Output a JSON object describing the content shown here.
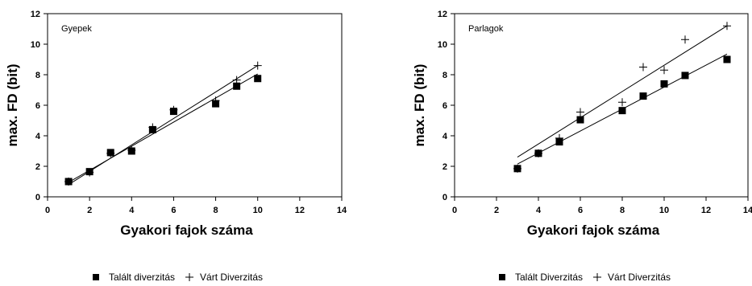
{
  "chart_data": [
    {
      "type": "scatter",
      "title": "Gyepek",
      "xlabel": "Gyakori fajok száma",
      "ylabel": "max. FD (bit)",
      "xlim": [
        0,
        14
      ],
      "ylim": [
        0,
        12
      ],
      "xticks": [
        0,
        2,
        4,
        6,
        8,
        10,
        12,
        14
      ],
      "yticks": [
        0,
        2,
        4,
        6,
        8,
        10,
        12
      ],
      "grid": false,
      "legend_position": "bottom",
      "series": [
        {
          "name": "Talált diverzitás",
          "marker": "square",
          "color": "#000000",
          "points": [
            [
              1,
              1.0
            ],
            [
              2,
              1.65
            ],
            [
              3,
              2.9
            ],
            [
              4,
              3.0
            ],
            [
              5,
              4.4
            ],
            [
              6,
              5.6
            ],
            [
              8,
              6.1
            ],
            [
              9,
              7.25
            ],
            [
              10,
              7.75
            ]
          ],
          "trendline": [
            [
              1,
              0.95
            ],
            [
              10,
              8.05
            ]
          ]
        },
        {
          "name": "Várt Diverzitás",
          "marker": "plus",
          "color": "#000000",
          "points": [
            [
              1,
              1.0
            ],
            [
              2,
              1.6
            ],
            [
              3,
              2.85
            ],
            [
              4,
              3.05
            ],
            [
              5,
              4.55
            ],
            [
              6,
              5.7
            ],
            [
              8,
              6.3
            ],
            [
              9,
              7.65
            ],
            [
              10,
              8.6
            ]
          ],
          "trendline": [
            [
              1,
              0.8
            ],
            [
              10,
              8.6
            ]
          ]
        }
      ]
    },
    {
      "type": "scatter",
      "title": "Parlagok",
      "xlabel": "Gyakori fajok száma",
      "ylabel": "max. FD (bit)",
      "xlim": [
        0,
        14
      ],
      "ylim": [
        0,
        12
      ],
      "xticks": [
        0,
        2,
        4,
        6,
        8,
        10,
        12,
        14
      ],
      "yticks": [
        0,
        2,
        4,
        6,
        8,
        10,
        12
      ],
      "grid": false,
      "legend_position": "bottom",
      "series": [
        {
          "name": "Talált Diverzitás",
          "marker": "square",
          "color": "#000000",
          "points": [
            [
              3,
              1.85
            ],
            [
              4,
              2.85
            ],
            [
              5,
              3.6
            ],
            [
              6,
              5.05
            ],
            [
              8,
              5.65
            ],
            [
              9,
              6.6
            ],
            [
              10,
              7.4
            ],
            [
              11,
              7.95
            ],
            [
              13,
              9.0
            ]
          ],
          "trendline": [
            [
              3,
              2.15
            ],
            [
              13,
              9.35
            ]
          ]
        },
        {
          "name": "Várt Diverzitás",
          "marker": "plus",
          "color": "#000000",
          "points": [
            [
              3,
              1.85
            ],
            [
              4,
              2.85
            ],
            [
              5,
              3.85
            ],
            [
              6,
              5.55
            ],
            [
              8,
              6.2
            ],
            [
              9,
              8.5
            ],
            [
              10,
              8.3
            ],
            [
              11,
              10.3
            ],
            [
              13,
              11.2
            ]
          ],
          "trendline": [
            [
              3,
              2.6
            ],
            [
              13,
              11.2
            ]
          ]
        }
      ]
    }
  ]
}
